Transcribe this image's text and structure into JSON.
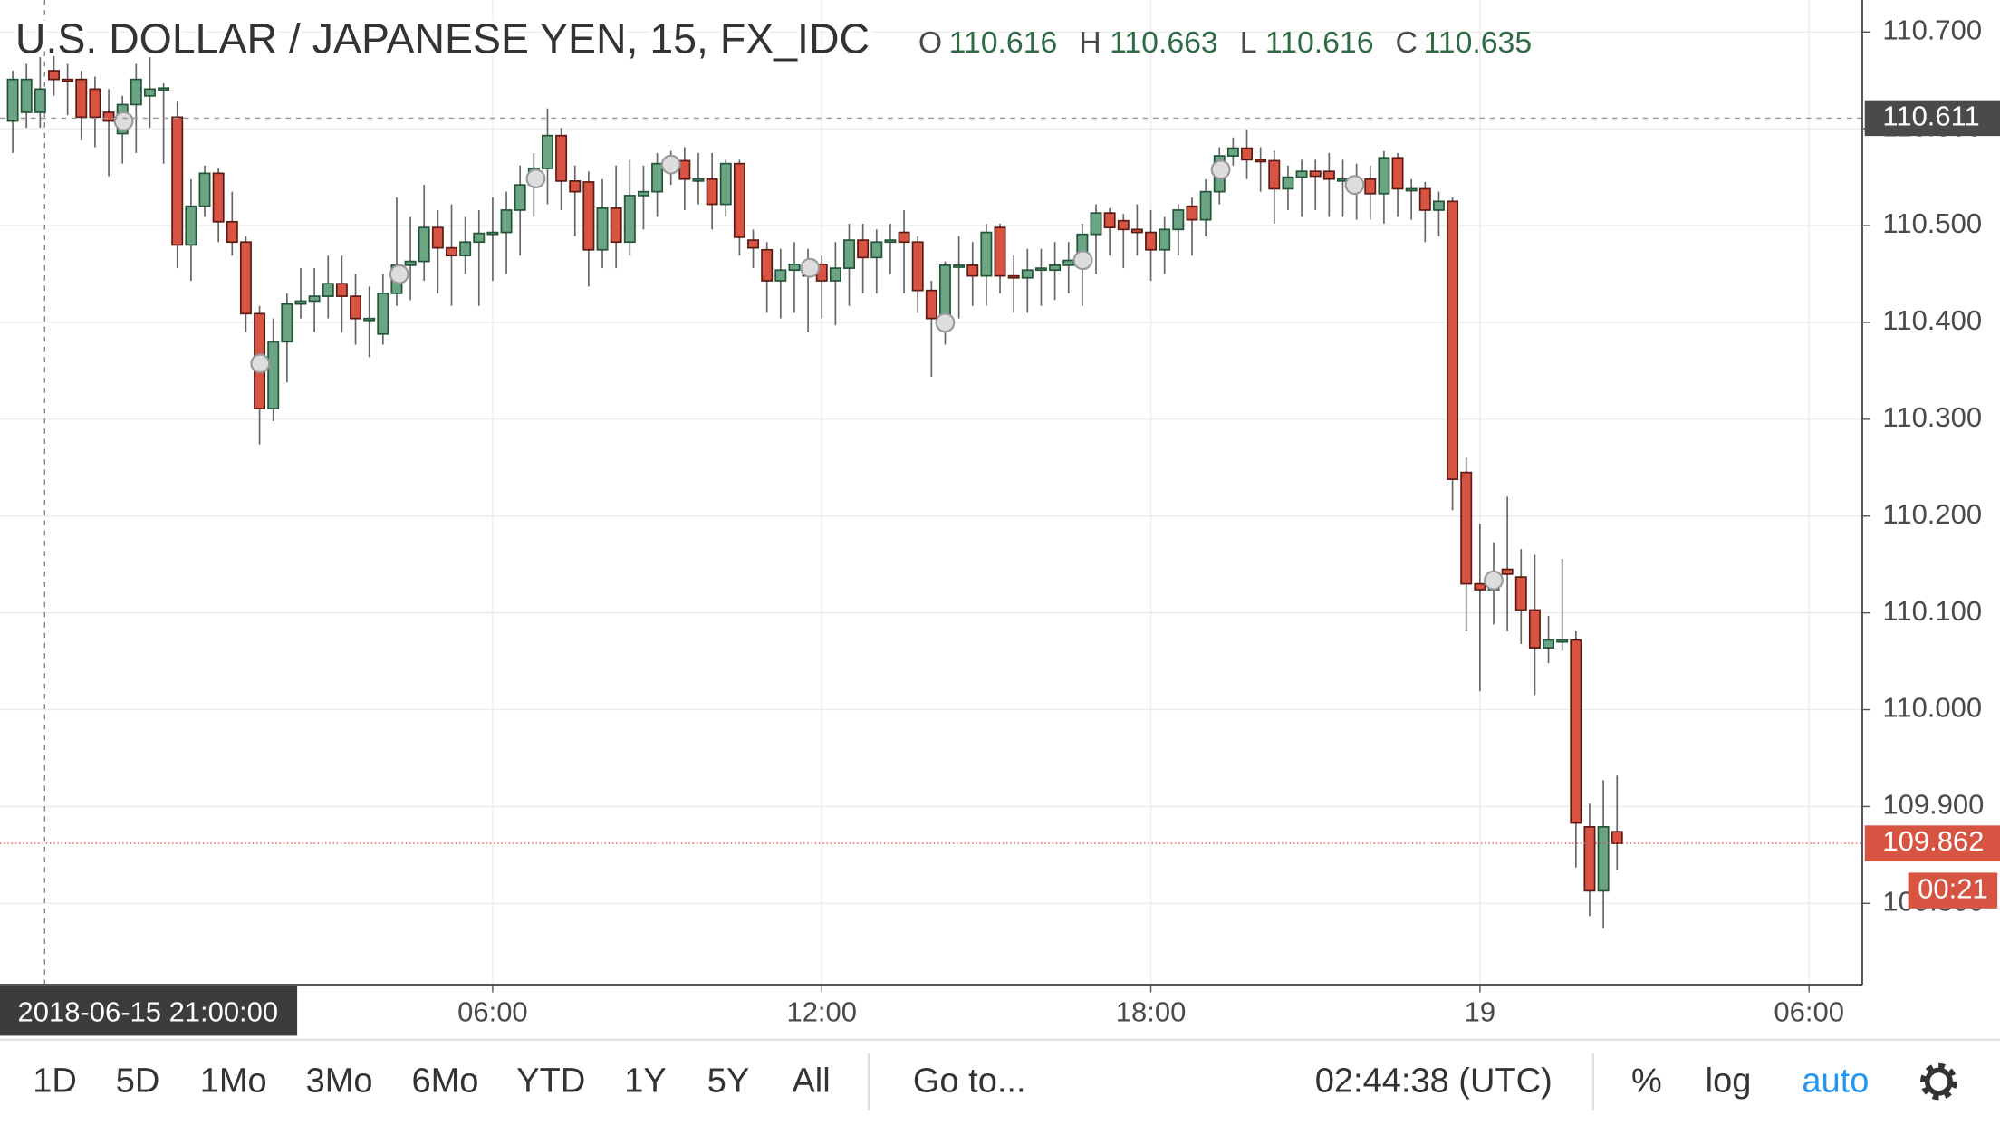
{
  "header": {
    "title": "U.S. DOLLAR / JAPANESE YEN, 15, FX_IDC",
    "ohlc": [
      {
        "label": "O",
        "value": 110.616
      },
      {
        "label": "H",
        "value": 110.663
      },
      {
        "label": "L",
        "value": 110.616
      },
      {
        "label": "C",
        "value": 110.635
      }
    ]
  },
  "chart_data": {
    "type": "candlestick",
    "open": [
      110.608,
      110.617,
      110.617,
      110.66,
      110.651,
      110.651,
      110.641,
      110.617,
      110.595,
      110.625,
      110.634,
      110.641,
      110.612,
      110.48,
      110.52,
      110.554,
      110.504,
      110.483,
      110.409,
      110.311,
      110.38,
      110.419,
      110.422,
      110.427,
      110.44,
      110.427,
      110.404,
      110.388,
      110.43,
      110.459,
      110.463,
      110.498,
      110.477,
      110.469,
      110.483,
      110.492,
      110.493,
      110.516,
      110.542,
      110.559,
      110.593,
      110.546,
      110.545,
      110.475,
      110.518,
      110.483,
      110.531,
      110.535,
      110.564,
      110.567,
      110.548,
      110.548,
      110.522,
      110.564,
      110.485,
      110.475,
      110.443,
      110.454,
      110.46,
      110.46,
      110.443,
      110.456,
      110.485,
      110.467,
      110.483,
      110.493,
      110.483,
      110.433,
      110.404,
      110.459,
      110.459,
      110.448,
      110.498,
      110.448,
      110.446,
      110.454,
      110.454,
      110.459,
      110.464,
      110.491,
      110.513,
      110.505,
      110.496,
      110.493,
      110.475,
      110.496,
      110.52,
      110.506,
      110.535,
      110.572,
      110.58,
      110.568,
      110.567,
      110.538,
      110.55,
      110.556,
      110.556,
      110.548,
      110.548,
      110.548,
      110.533,
      110.57,
      110.538,
      110.538,
      110.516,
      110.525,
      110.245,
      110.13,
      110.124,
      110.145,
      110.137,
      110.103,
      110.064,
      110.072,
      110.072,
      109.879,
      109.813,
      109.874
    ],
    "high": [
      110.66,
      110.667,
      110.674,
      110.678,
      110.667,
      110.66,
      110.654,
      110.641,
      110.634,
      110.667,
      110.674,
      110.647,
      110.628,
      110.548,
      110.562,
      110.559,
      110.535,
      110.489,
      110.417,
      110.404,
      110.43,
      110.456,
      110.456,
      110.469,
      110.469,
      110.45,
      110.437,
      110.45,
      110.529,
      110.509,
      110.542,
      110.516,
      110.522,
      110.509,
      110.516,
      110.529,
      110.535,
      110.562,
      110.575,
      110.621,
      110.601,
      110.562,
      110.556,
      110.548,
      110.562,
      110.568,
      110.562,
      110.575,
      110.577,
      110.581,
      110.575,
      110.575,
      110.568,
      110.568,
      110.496,
      110.483,
      110.476,
      110.483,
      110.476,
      110.469,
      110.483,
      110.502,
      110.502,
      110.496,
      110.502,
      110.516,
      110.489,
      110.443,
      110.463,
      110.489,
      110.483,
      110.502,
      110.502,
      110.469,
      110.476,
      110.476,
      110.483,
      110.483,
      110.502,
      110.522,
      110.518,
      110.512,
      110.522,
      110.516,
      110.509,
      110.522,
      110.529,
      110.548,
      110.581,
      110.591,
      110.599,
      110.581,
      110.577,
      110.562,
      110.568,
      110.568,
      110.575,
      110.568,
      110.564,
      110.562,
      110.577,
      110.575,
      110.548,
      110.545,
      110.535,
      110.529,
      110.261,
      110.192,
      110.173,
      110.22,
      110.166,
      110.16,
      110.097,
      110.156,
      110.081,
      109.903,
      109.927,
      109.932
    ],
    "low": [
      110.575,
      110.601,
      110.601,
      110.634,
      110.614,
      110.588,
      110.581,
      110.551,
      110.564,
      110.575,
      110.601,
      110.564,
      110.456,
      110.443,
      110.509,
      110.483,
      110.469,
      110.39,
      110.274,
      110.298,
      110.338,
      110.404,
      110.39,
      110.404,
      110.39,
      110.377,
      110.364,
      110.377,
      110.417,
      110.423,
      110.443,
      110.43,
      110.417,
      110.45,
      110.417,
      110.443,
      110.45,
      110.469,
      110.509,
      110.522,
      110.516,
      110.489,
      110.437,
      110.456,
      110.456,
      110.469,
      110.496,
      110.509,
      110.542,
      110.516,
      110.522,
      110.496,
      110.509,
      110.469,
      110.456,
      110.41,
      110.404,
      110.41,
      110.39,
      110.404,
      110.397,
      110.417,
      110.43,
      110.43,
      110.45,
      110.43,
      110.41,
      110.344,
      110.377,
      110.404,
      110.417,
      110.417,
      110.43,
      110.41,
      110.41,
      110.417,
      110.423,
      110.43,
      110.417,
      110.45,
      110.469,
      110.456,
      110.469,
      110.443,
      110.45,
      110.469,
      110.469,
      110.489,
      110.522,
      110.562,
      110.548,
      110.535,
      110.502,
      110.516,
      110.509,
      110.516,
      110.509,
      110.509,
      110.506,
      110.506,
      110.502,
      110.509,
      110.506,
      110.483,
      110.489,
      110.206,
      110.081,
      110.019,
      110.088,
      110.081,
      110.068,
      110.015,
      110.048,
      110.061,
      109.837,
      109.787,
      109.774,
      109.834
    ],
    "close": [
      110.651,
      110.651,
      110.641,
      110.651,
      110.65,
      110.612,
      110.612,
      110.608,
      110.625,
      110.651,
      110.641,
      110.642,
      110.48,
      110.52,
      110.554,
      110.504,
      110.483,
      110.409,
      110.311,
      110.38,
      110.419,
      110.422,
      110.427,
      110.44,
      110.427,
      110.404,
      110.404,
      110.43,
      110.459,
      110.463,
      110.498,
      110.477,
      110.469,
      110.483,
      110.492,
      110.493,
      110.516,
      110.542,
      110.559,
      110.593,
      110.546,
      110.535,
      110.475,
      110.518,
      110.483,
      110.531,
      110.535,
      110.564,
      110.567,
      110.548,
      110.548,
      110.522,
      110.564,
      110.488,
      110.477,
      110.443,
      110.454,
      110.46,
      110.448,
      110.443,
      110.456,
      110.485,
      110.467,
      110.483,
      110.485,
      110.483,
      110.433,
      110.404,
      110.459,
      110.459,
      110.448,
      110.493,
      110.448,
      110.446,
      110.454,
      110.456,
      110.459,
      110.464,
      110.491,
      110.513,
      110.498,
      110.496,
      110.493,
      110.475,
      110.496,
      110.516,
      110.506,
      110.535,
      110.572,
      110.58,
      110.568,
      110.567,
      110.538,
      110.55,
      110.556,
      110.551,
      110.548,
      110.548,
      110.542,
      110.533,
      110.57,
      110.538,
      110.538,
      110.516,
      110.525,
      110.238,
      110.13,
      110.124,
      110.137,
      110.14,
      110.103,
      110.064,
      110.072,
      110.072,
      109.883,
      109.813,
      109.879,
      109.862
    ],
    "up_color": "#6ba583",
    "down_color": "#d75442",
    "xlim": [
      -0.93,
      134.88
    ],
    "xticks": [
      {
        "value": 35,
        "label": "06:00"
      },
      {
        "value": 59,
        "label": "12:00"
      },
      {
        "value": 83,
        "label": "18:00"
      },
      {
        "value": 107,
        "label": "19"
      },
      {
        "value": 131,
        "label": "06:00"
      }
    ],
    "ylim": [
      109.716,
      110.733
    ],
    "yticks": [
      {
        "value": 109.8,
        "label": "109.800"
      },
      {
        "value": 109.9,
        "label": "109.900"
      },
      {
        "value": 110.0,
        "label": "110.000"
      },
      {
        "value": 110.1,
        "label": "110.100"
      },
      {
        "value": 110.2,
        "label": "110.200"
      },
      {
        "value": 110.3,
        "label": "110.300"
      },
      {
        "value": 110.4,
        "label": "110.400"
      },
      {
        "value": 110.5,
        "label": "110.500"
      },
      {
        "value": 110.6,
        "label": "110.600"
      },
      {
        "value": 110.7,
        "label": "110.700"
      }
    ],
    "grid": true,
    "crosshair": {
      "time": "2018-06-15 21:00:00",
      "price": 110.611
    },
    "last_price": 109.862,
    "countdown": "00:21"
  },
  "toolbar": {
    "ranges": [
      "1D",
      "5D",
      "1Mo",
      "3Mo",
      "6Mo",
      "YTD",
      "1Y",
      "5Y",
      "All"
    ],
    "goto": "Go to...",
    "clock": "02:44:38 (UTC)",
    "percent": "%",
    "log": "log",
    "auto": "auto"
  }
}
